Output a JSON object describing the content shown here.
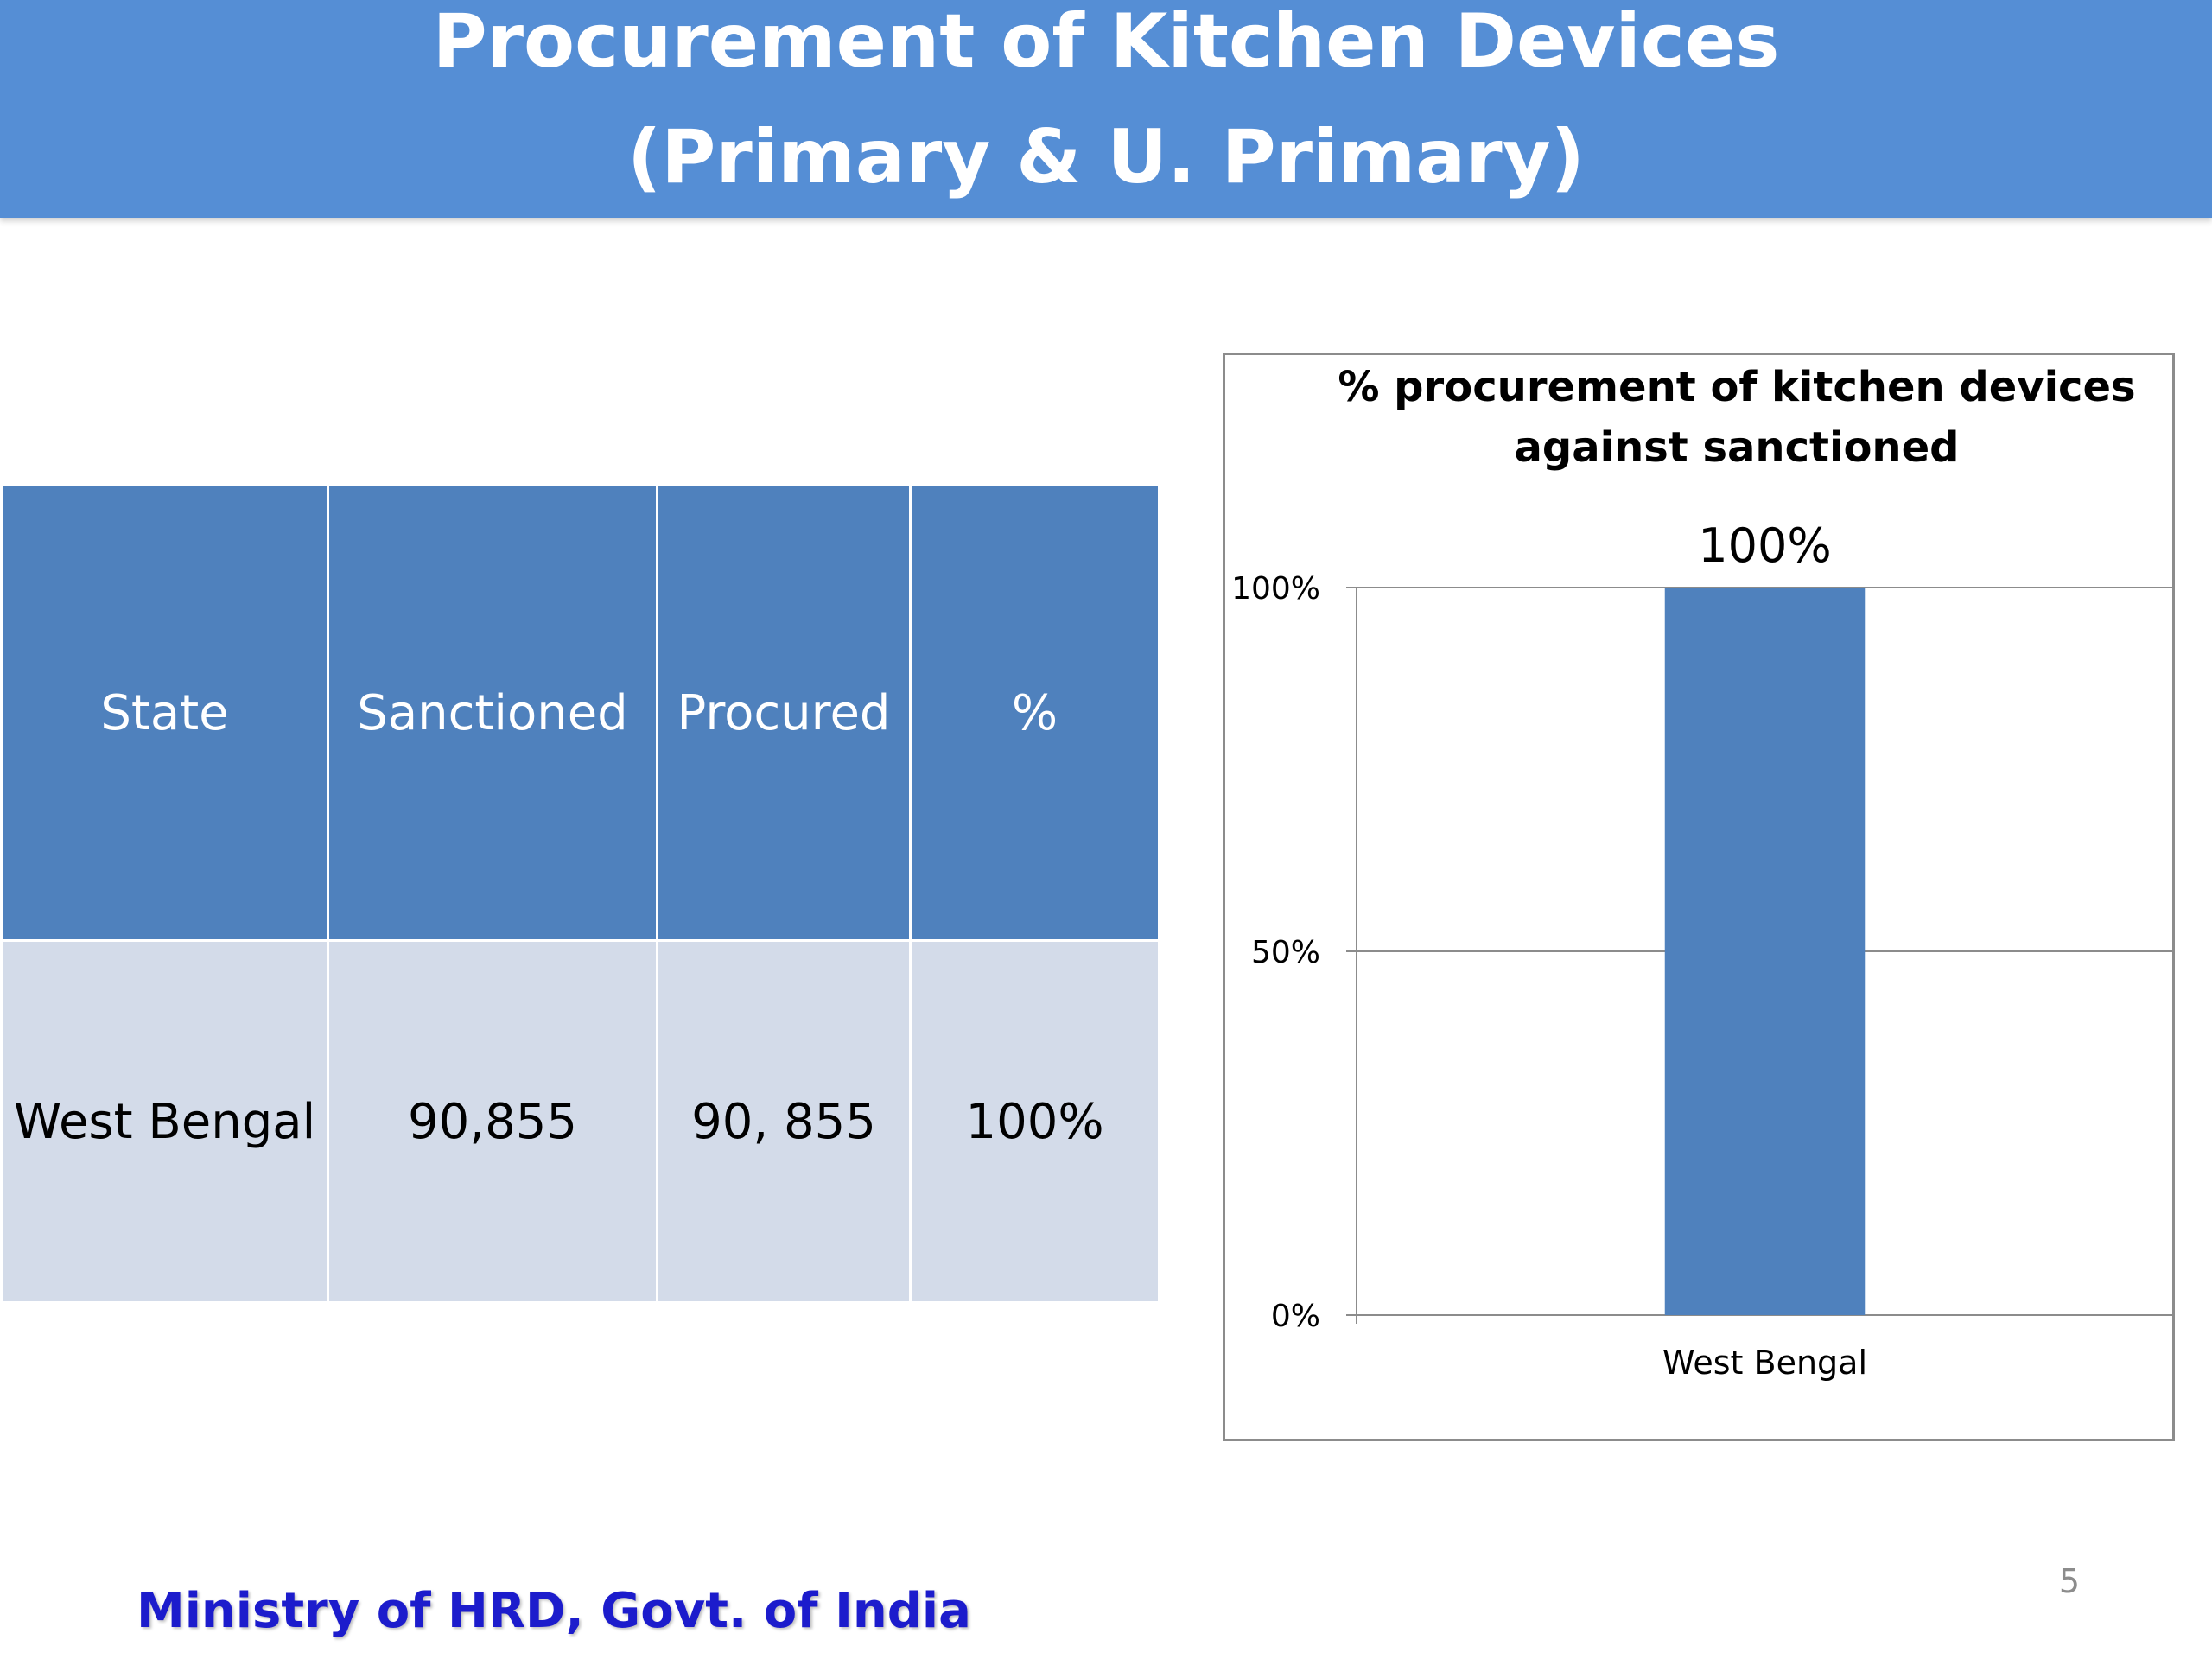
{
  "slide": {
    "title_line1": "Procurement of Kitchen Devices",
    "title_line2": "(Primary & U. Primary)",
    "footer": "Ministry of HRD, Govt. of India",
    "page_number": "5"
  },
  "table": {
    "headers": [
      "State",
      "Sanctioned",
      "Procured",
      "%"
    ],
    "rows": [
      [
        "West Bengal",
        "90,855",
        "90, 855",
        "100%"
      ]
    ]
  },
  "chart_data": {
    "type": "bar",
    "title_line1": "% procurement  of kitchen devices",
    "title_line2": "against sanctioned",
    "categories": [
      "West Bengal"
    ],
    "values": [
      100
    ],
    "data_labels": [
      "100%"
    ],
    "y_ticks": [
      "0%",
      "50%",
      "100%"
    ],
    "ylim": [
      0,
      100
    ],
    "grid": true,
    "legend": "none",
    "bar_color": "#4f81bd"
  }
}
